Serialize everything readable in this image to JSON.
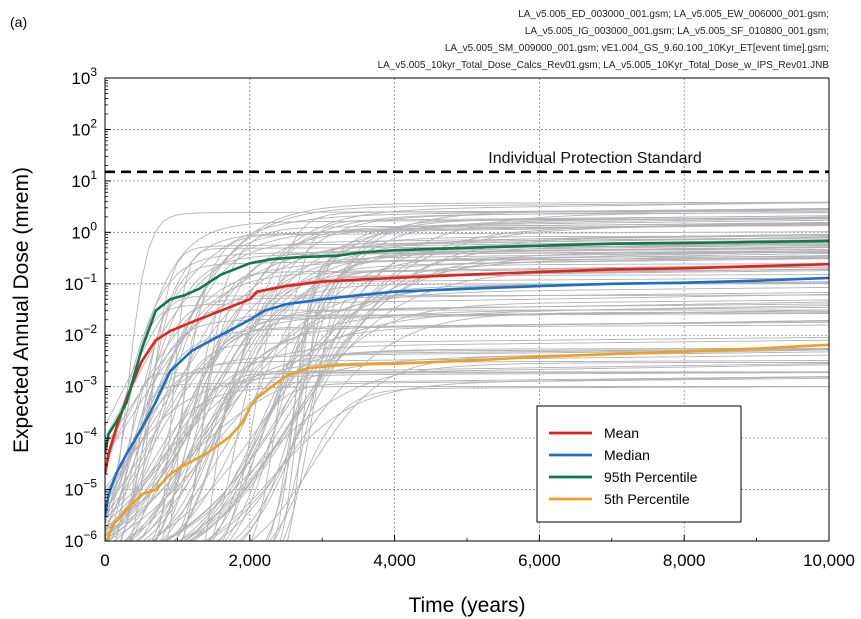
{
  "panel_label": "(a)",
  "file_lines": [
    "LA_v5.005_ED_003000_001.gsm;  LA_v5.005_EW_006000_001.gsm;",
    "LA_v5.005_IG_003000_001.gsm;  LA_v5.005_SF_010800_001.gsm;",
    "LA_v5.005_SM_009000_001.gsm; vE1.004_GS_9.60.100_10Kyr_ET[event time].gsm;",
    "LA_v5.005_10kyr_Total_Dose_Calcs_Rev01.gsm;  LA_v5.005_10Kyr_Total_Dose_w_IPS_Rev01.JNB"
  ],
  "chart_data": {
    "type": "line",
    "xlabel": "Time (years)",
    "ylabel": "Expected Annual Dose (mrem)",
    "xlim": [
      0,
      10000
    ],
    "ylim": [
      1e-06,
      1000
    ],
    "yscale": "log",
    "grid": true,
    "x_tick_labels": [
      "0",
      "2,000",
      "4,000",
      "6,000",
      "8,000",
      "10,000"
    ],
    "x_tick_values": [
      0,
      2000,
      4000,
      6000,
      8000,
      10000
    ],
    "y_tick_exponents": [
      -6,
      -5,
      -4,
      -3,
      -2,
      -1,
      0,
      1,
      2,
      3
    ],
    "y_tick_base": "10",
    "legend_position": "lower-right",
    "annotations": [
      {
        "text": "Individual Protection Standard",
        "y": 15,
        "style": "dashed",
        "color": "#000000"
      }
    ],
    "series": [
      {
        "name": "Mean",
        "color": "#e2231a",
        "x": [
          0,
          50,
          150,
          300,
          500,
          700,
          900,
          1200,
          1600,
          2000,
          2100,
          2500,
          3000,
          3500,
          4000,
          5000,
          6000,
          7000,
          8000,
          9000,
          10000
        ],
        "y": [
          2e-05,
          5e-05,
          0.00015,
          0.0006,
          0.003,
          0.008,
          0.012,
          0.018,
          0.03,
          0.05,
          0.07,
          0.09,
          0.11,
          0.12,
          0.13,
          0.15,
          0.17,
          0.19,
          0.2,
          0.22,
          0.24
        ]
      },
      {
        "name": "Median",
        "color": "#1f6fc0",
        "x": [
          0,
          50,
          150,
          300,
          500,
          700,
          900,
          1200,
          1600,
          2000,
          2200,
          2500,
          3000,
          3500,
          4000,
          5000,
          6000,
          7000,
          8000,
          9000,
          10000
        ],
        "y": [
          3e-06,
          8e-06,
          2e-05,
          5e-05,
          0.00015,
          0.0005,
          0.002,
          0.005,
          0.01,
          0.02,
          0.03,
          0.04,
          0.05,
          0.06,
          0.07,
          0.08,
          0.09,
          0.1,
          0.105,
          0.115,
          0.13
        ]
      },
      {
        "name": "95th Percentile",
        "color": "#0e7a4a",
        "x": [
          0,
          50,
          150,
          300,
          500,
          700,
          900,
          1100,
          1300,
          1600,
          2000,
          2300,
          2700,
          3200,
          3500,
          4000,
          5000,
          6000,
          7000,
          8000,
          9000,
          10000
        ],
        "y": [
          5e-05,
          0.00012,
          0.0002,
          0.0005,
          0.005,
          0.03,
          0.05,
          0.06,
          0.08,
          0.15,
          0.25,
          0.3,
          0.33,
          0.35,
          0.4,
          0.45,
          0.5,
          0.55,
          0.6,
          0.62,
          0.65,
          0.68
        ]
      },
      {
        "name": "5th Percentile",
        "color": "#f0a020",
        "x": [
          0,
          100,
          300,
          500,
          700,
          900,
          1100,
          1400,
          1700,
          1900,
          2000,
          2100,
          2300,
          2500,
          2800,
          3200,
          3500,
          4000,
          5000,
          6000,
          7000,
          8000,
          9000,
          10000
        ],
        "y": [
          8e-07,
          2e-06,
          4e-06,
          8e-06,
          1e-05,
          2e-05,
          3e-05,
          5e-05,
          0.0001,
          0.0002,
          0.0004,
          0.0006,
          0.001,
          0.0016,
          0.0023,
          0.0026,
          0.0027,
          0.0028,
          0.0032,
          0.0038,
          0.0043,
          0.0048,
          0.0055,
          0.0065
        ]
      }
    ],
    "realizations_color": "#b4b4b8"
  }
}
